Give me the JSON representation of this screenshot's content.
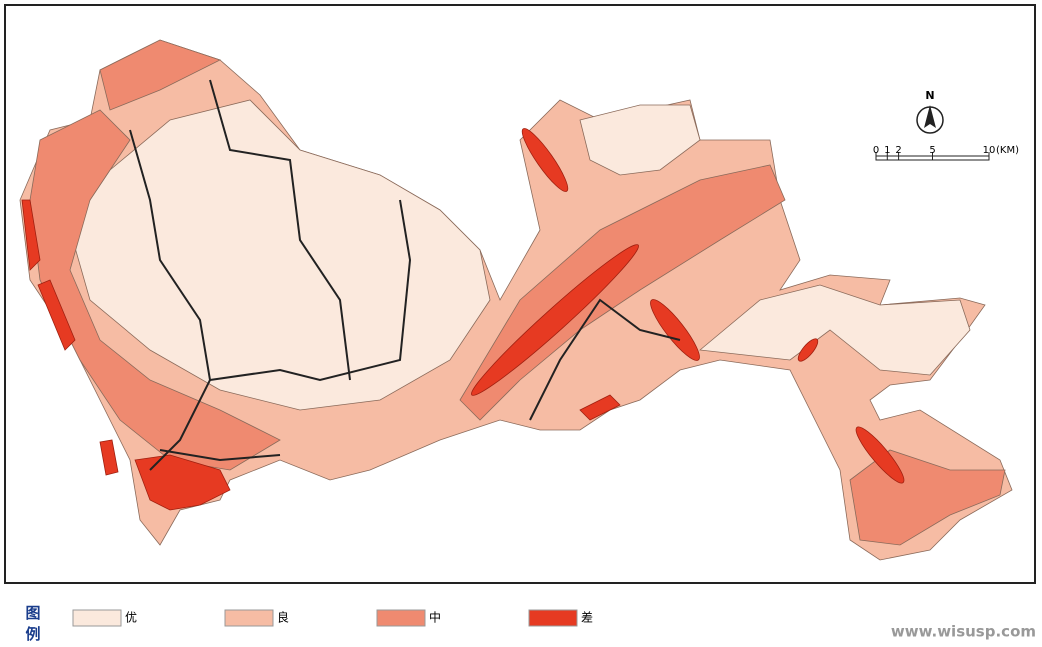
{
  "map": {
    "north": "N",
    "scale": {
      "ticks": [
        0,
        1,
        2,
        5,
        10
      ],
      "unit": "(KM)"
    }
  },
  "legend": {
    "title": "图例",
    "items": [
      {
        "label": "优",
        "color": "#fbe9dd"
      },
      {
        "label": "良",
        "color": "#f6bca4"
      },
      {
        "label": "中",
        "color": "#ef8a70"
      },
      {
        "label": "差",
        "color": "#e63a22"
      }
    ]
  },
  "watermark": "www.wisusp.com"
}
